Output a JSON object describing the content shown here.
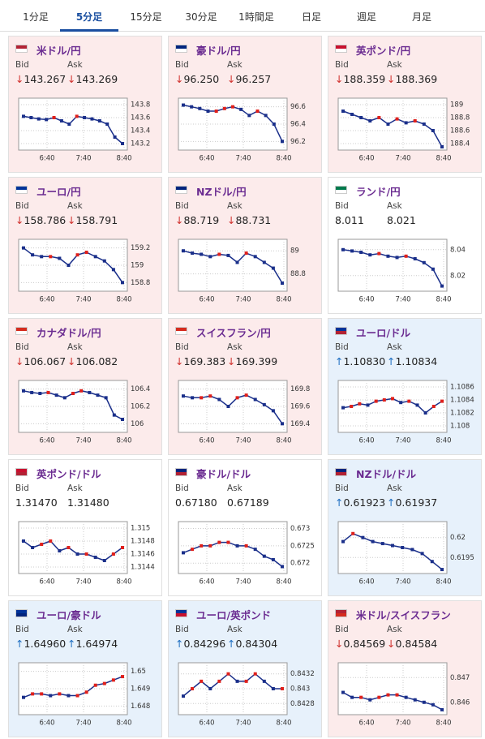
{
  "tabs": [
    "1分足",
    "5分足",
    "15分足",
    "30分足",
    "1時間足",
    "日足",
    "週足",
    "月足"
  ],
  "active_tab": 1,
  "labels": {
    "bid": "Bid",
    "ask": "Ask"
  },
  "time_labels": [
    "6:40",
    "7:40",
    "8:40"
  ],
  "cards": [
    {
      "title": "米ドル/円",
      "trend": "down",
      "arrow": "↓",
      "bid": "143.267",
      "ask": "143.269",
      "flag": [
        "#b22234",
        "#fff"
      ],
      "ylim": [
        143.1,
        143.9
      ],
      "yticks": [
        143.2,
        143.4,
        143.6,
        143.8
      ],
      "series": [
        143.62,
        143.6,
        143.58,
        143.57,
        143.6,
        143.55,
        143.5,
        143.62,
        143.6,
        143.58,
        143.55,
        143.5,
        143.3,
        143.2
      ]
    },
    {
      "title": "豪ドル/円",
      "trend": "down",
      "arrow": "↓",
      "bid": "96.250",
      "ask": "96.257",
      "flag": [
        "#00247d",
        "#fff"
      ],
      "ylim": [
        96.1,
        96.7
      ],
      "yticks": [
        96.2,
        96.4,
        96.6
      ],
      "series": [
        96.62,
        96.6,
        96.58,
        96.55,
        96.55,
        96.58,
        96.6,
        96.57,
        96.5,
        96.55,
        96.5,
        96.4,
        96.2
      ]
    },
    {
      "title": "英ポンド/円",
      "trend": "down",
      "arrow": "↓",
      "bid": "188.359",
      "ask": "188.369",
      "flag": [
        "#c8102e",
        "#fff"
      ],
      "ylim": [
        188.3,
        189.1
      ],
      "yticks": [
        188.4,
        188.6,
        188.8,
        189
      ],
      "series": [
        188.9,
        188.85,
        188.8,
        188.75,
        188.8,
        188.7,
        188.78,
        188.72,
        188.75,
        188.7,
        188.6,
        188.35
      ]
    },
    {
      "title": "ユーロ/円",
      "trend": "down",
      "arrow": "↓",
      "bid": "158.786",
      "ask": "158.791",
      "flag": [
        "#003399",
        "#fff"
      ],
      "ylim": [
        158.7,
        159.3
      ],
      "yticks": [
        158.8,
        159,
        159.2
      ],
      "series": [
        159.2,
        159.12,
        159.1,
        159.1,
        159.08,
        159,
        159.12,
        159.15,
        159.1,
        159.05,
        158.95,
        158.8
      ]
    },
    {
      "title": "NZドル/円",
      "trend": "down",
      "arrow": "↓",
      "bid": "88.719",
      "ask": "88.731",
      "flag": [
        "#00247d",
        "#fff"
      ],
      "ylim": [
        88.65,
        89.1
      ],
      "yticks": [
        88.8,
        89
      ],
      "series": [
        89,
        88.98,
        88.97,
        88.95,
        88.97,
        88.96,
        88.9,
        88.98,
        88.95,
        88.9,
        88.85,
        88.72
      ]
    },
    {
      "title": "ランド/円",
      "trend": "flat",
      "bid": "8.011",
      "ask": "8.021",
      "flag": [
        "#007a4d",
        "#fff"
      ],
      "ylim": [
        8.008,
        8.048
      ],
      "yticks": [
        8.02,
        8.04
      ],
      "series": [
        8.04,
        8.039,
        8.038,
        8.036,
        8.037,
        8.035,
        8.034,
        8.035,
        8.033,
        8.03,
        8.025,
        8.012
      ]
    },
    {
      "title": "カナダドル/円",
      "trend": "down",
      "arrow": "↓",
      "bid": "106.067",
      "ask": "106.082",
      "flag": [
        "#d52b1e",
        "#fff"
      ],
      "ylim": [
        105.9,
        106.5
      ],
      "yticks": [
        106,
        106.2,
        106.4
      ],
      "series": [
        106.38,
        106.36,
        106.35,
        106.36,
        106.33,
        106.3,
        106.35,
        106.38,
        106.36,
        106.33,
        106.3,
        106.1,
        106.05
      ]
    },
    {
      "title": "スイスフラン/円",
      "trend": "down",
      "arrow": "↓",
      "bid": "169.383",
      "ask": "169.399",
      "flag": [
        "#d52b1e",
        "#fff"
      ],
      "ylim": [
        169.3,
        169.9
      ],
      "yticks": [
        169.4,
        169.6,
        169.8
      ],
      "series": [
        169.72,
        169.7,
        169.7,
        169.72,
        169.68,
        169.6,
        169.7,
        169.73,
        169.68,
        169.62,
        169.55,
        169.4
      ]
    },
    {
      "title": "ユーロ/ドル",
      "trend": "up",
      "arrow": "↑",
      "bid": "1.10830",
      "ask": "1.10834",
      "flag": [
        "#003399",
        "#b22234"
      ],
      "ylim": [
        1.1079,
        1.1087
      ],
      "yticks": [
        1.108,
        1.1082,
        1.1084,
        1.1086
      ],
      "series": [
        1.10828,
        1.1083,
        1.10834,
        1.10832,
        1.10838,
        1.1084,
        1.10842,
        1.10836,
        1.10838,
        1.10832,
        1.1082,
        1.1083,
        1.10838
      ]
    },
    {
      "title": "英ポンド/ドル",
      "trend": "flat",
      "bid": "1.31470",
      "ask": "1.31480",
      "flag": [
        "#c8102e",
        "#b22234"
      ],
      "ylim": [
        1.3143,
        1.3151
      ],
      "yticks": [
        1.3144,
        1.3146,
        1.3148,
        1.315
      ],
      "series": [
        1.3148,
        1.3147,
        1.31475,
        1.3148,
        1.31465,
        1.3147,
        1.3146,
        1.3146,
        1.31455,
        1.3145,
        1.3146,
        1.3147
      ]
    },
    {
      "title": "豪ドル/ドル",
      "trend": "flat",
      "bid": "0.67180",
      "ask": "0.67189",
      "flag": [
        "#00247d",
        "#b22234"
      ],
      "ylim": [
        0.6717,
        0.6732
      ],
      "yticks": [
        0.672,
        0.6725,
        0.673
      ],
      "series": [
        0.6723,
        0.6724,
        0.6725,
        0.6725,
        0.6726,
        0.6726,
        0.6725,
        0.6725,
        0.6724,
        0.6722,
        0.6721,
        0.6719
      ]
    },
    {
      "title": "NZドル/ドル",
      "trend": "up",
      "arrow": "↑",
      "bid": "0.61923",
      "ask": "0.61937",
      "flag": [
        "#00247d",
        "#b22234"
      ],
      "ylim": [
        0.6191,
        0.6204
      ],
      "yticks": [
        0.6195,
        0.62
      ],
      "series": [
        0.6199,
        0.6201,
        0.62,
        0.6199,
        0.61985,
        0.6198,
        0.61975,
        0.6197,
        0.6196,
        0.6194,
        0.6192
      ]
    },
    {
      "title": "ユーロ/豪ドル",
      "trend": "up",
      "arrow": "↑",
      "bid": "1.64960",
      "ask": "1.64974",
      "flag": [
        "#003399",
        "#00247d"
      ],
      "ylim": [
        1.6475,
        1.6505
      ],
      "yticks": [
        1.648,
        1.649,
        1.65
      ],
      "series": [
        1.6485,
        1.6487,
        1.6487,
        1.6486,
        1.6487,
        1.6486,
        1.6486,
        1.6488,
        1.6492,
        1.6493,
        1.6495,
        1.6497
      ]
    },
    {
      "title": "ユーロ/英ポンド",
      "trend": "up",
      "arrow": "↑",
      "bid": "0.84296",
      "ask": "0.84304",
      "flag": [
        "#003399",
        "#c8102e"
      ],
      "ylim": [
        0.84265,
        0.84335
      ],
      "yticks": [
        0.8428,
        0.843,
        0.8432
      ],
      "series": [
        0.8429,
        0.843,
        0.8431,
        0.843,
        0.8431,
        0.8432,
        0.8431,
        0.8431,
        0.8432,
        0.8431,
        0.843,
        0.843
      ]
    },
    {
      "title": "米ドル/スイスフラン",
      "trend": "down",
      "arrow": "↓",
      "bid": "0.84569",
      "ask": "0.84584",
      "flag": [
        "#b22234",
        "#d52b1e"
      ],
      "ylim": [
        0.8455,
        0.8476
      ],
      "yticks": [
        0.846,
        0.847
      ],
      "series": [
        0.8464,
        0.8462,
        0.8462,
        0.8461,
        0.8462,
        0.8463,
        0.8463,
        0.8462,
        0.8461,
        0.846,
        0.8459,
        0.8457
      ]
    }
  ]
}
